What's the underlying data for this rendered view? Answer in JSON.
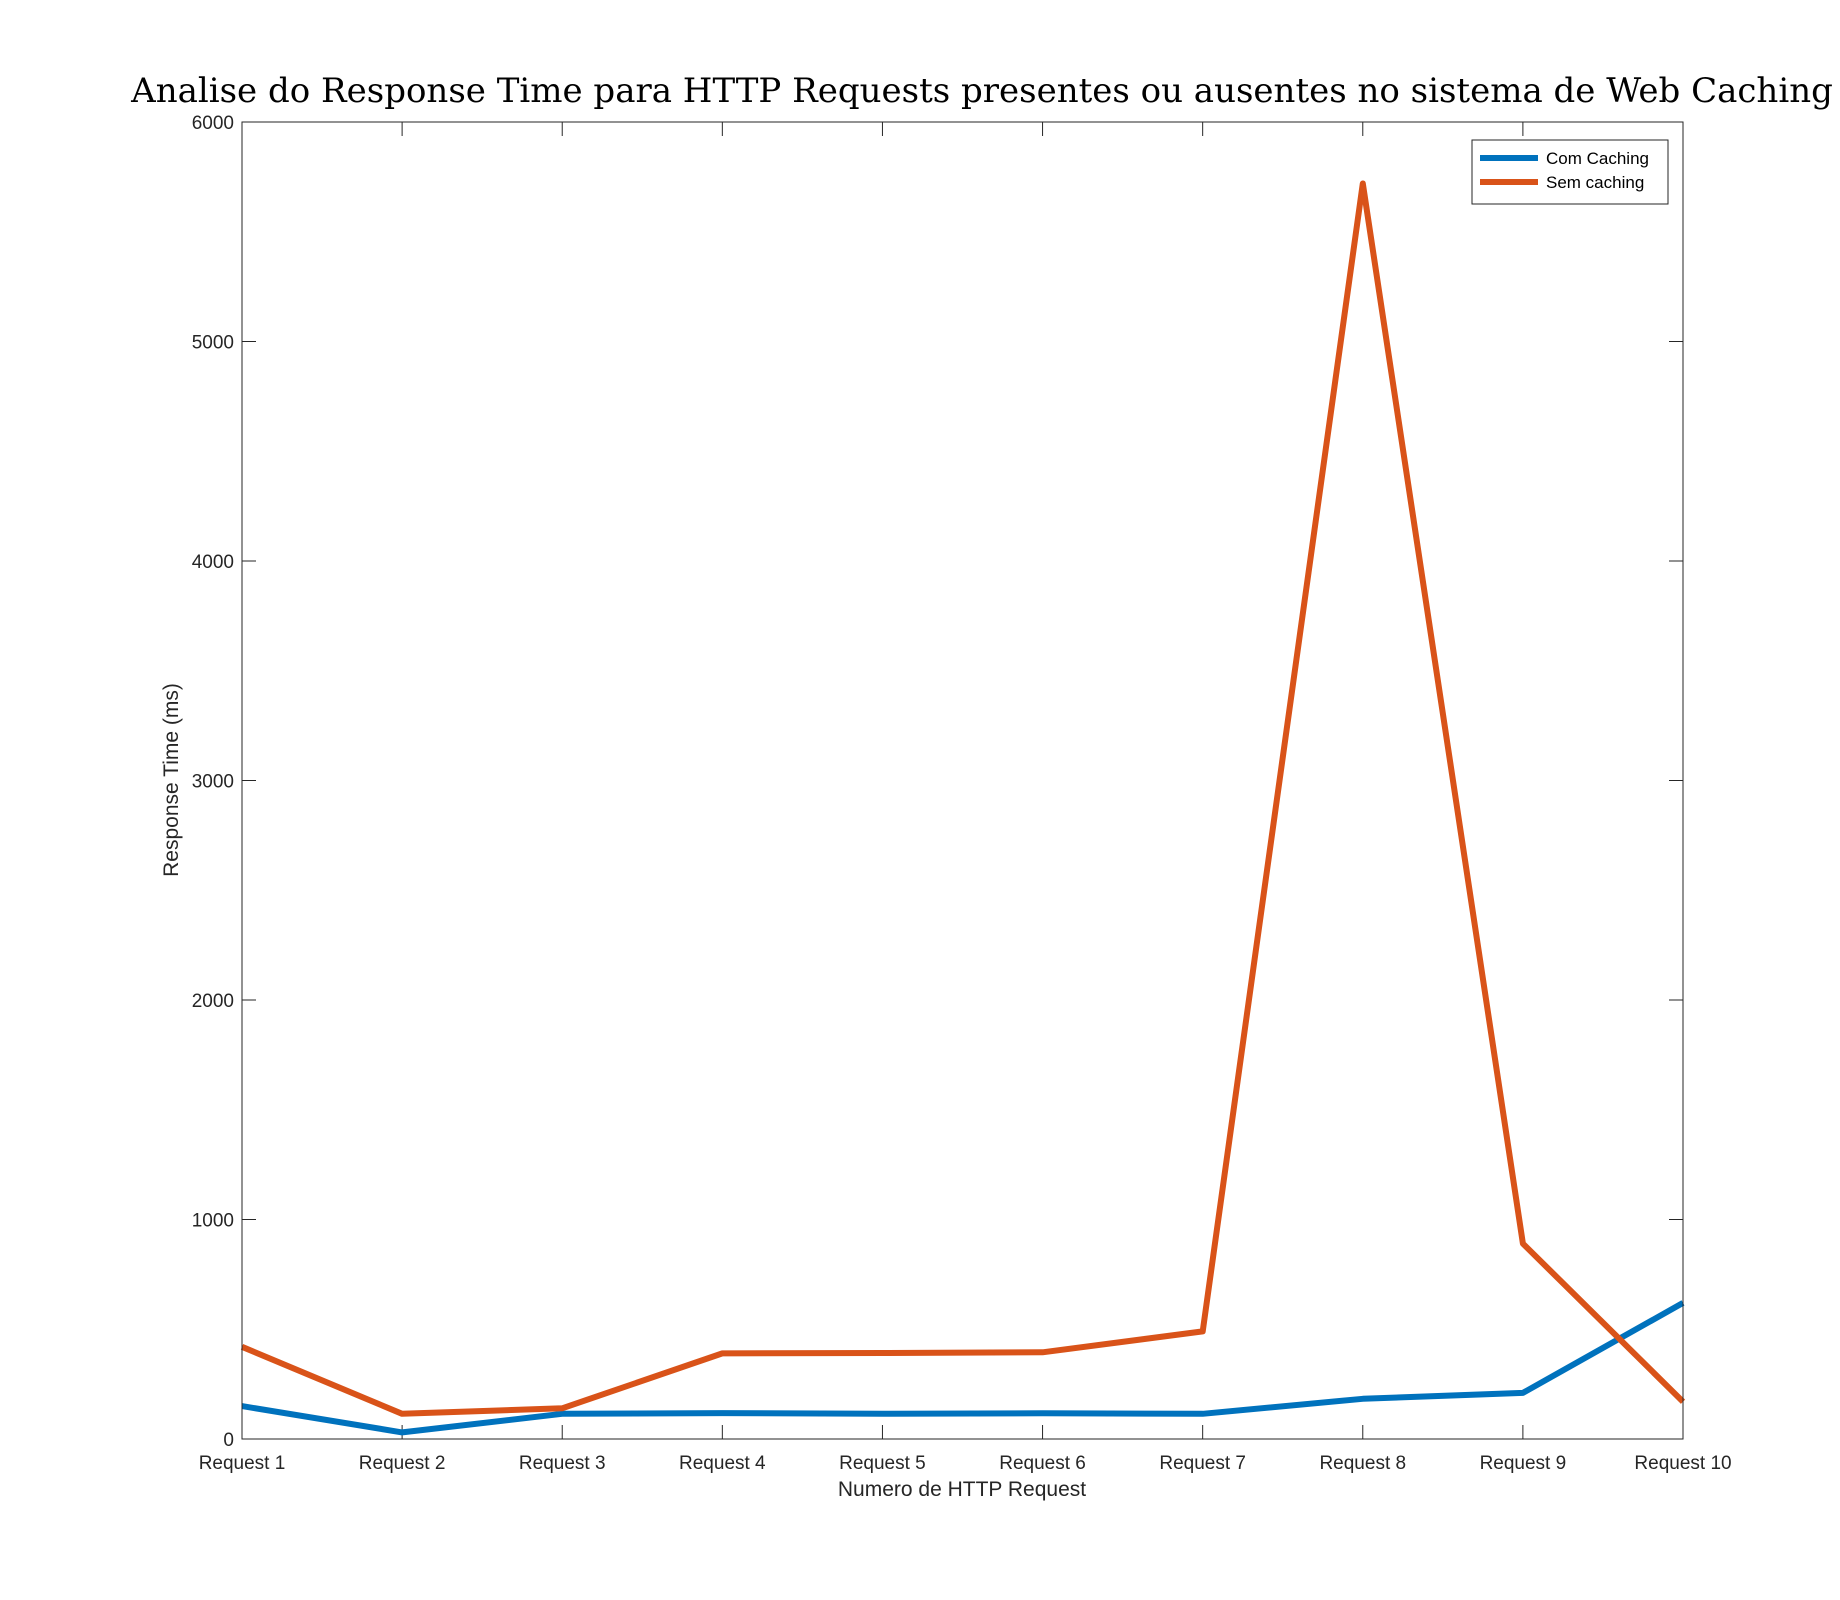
{
  "chart_data": {
    "type": "line",
    "title": "Analise do Response Time para HTTP Requests presentes ou ausentes no sistema de Web Caching",
    "xlabel": "Numero de HTTP Request",
    "ylabel": "Response Time (ms)",
    "categories": [
      "Request 1",
      "Request 2",
      "Request 3",
      "Request 4",
      "Request 5",
      "Request 6",
      "Request 7",
      "Request 8",
      "Request 9",
      "Request 10"
    ],
    "ylim": [
      0,
      6000
    ],
    "yticks": [
      0,
      1000,
      2000,
      3000,
      4000,
      5000,
      6000
    ],
    "grid": false,
    "legend_position": "top-right",
    "series": [
      {
        "name": "Com Caching",
        "color": "#0072BD",
        "values": [
          150,
          30,
          115,
          118,
          115,
          117,
          115,
          183,
          210,
          620
        ]
      },
      {
        "name": "Sem caching",
        "color": "#D95319",
        "values": [
          420,
          115,
          140,
          390,
          392,
          395,
          490,
          5720,
          890,
          170
        ]
      }
    ]
  }
}
